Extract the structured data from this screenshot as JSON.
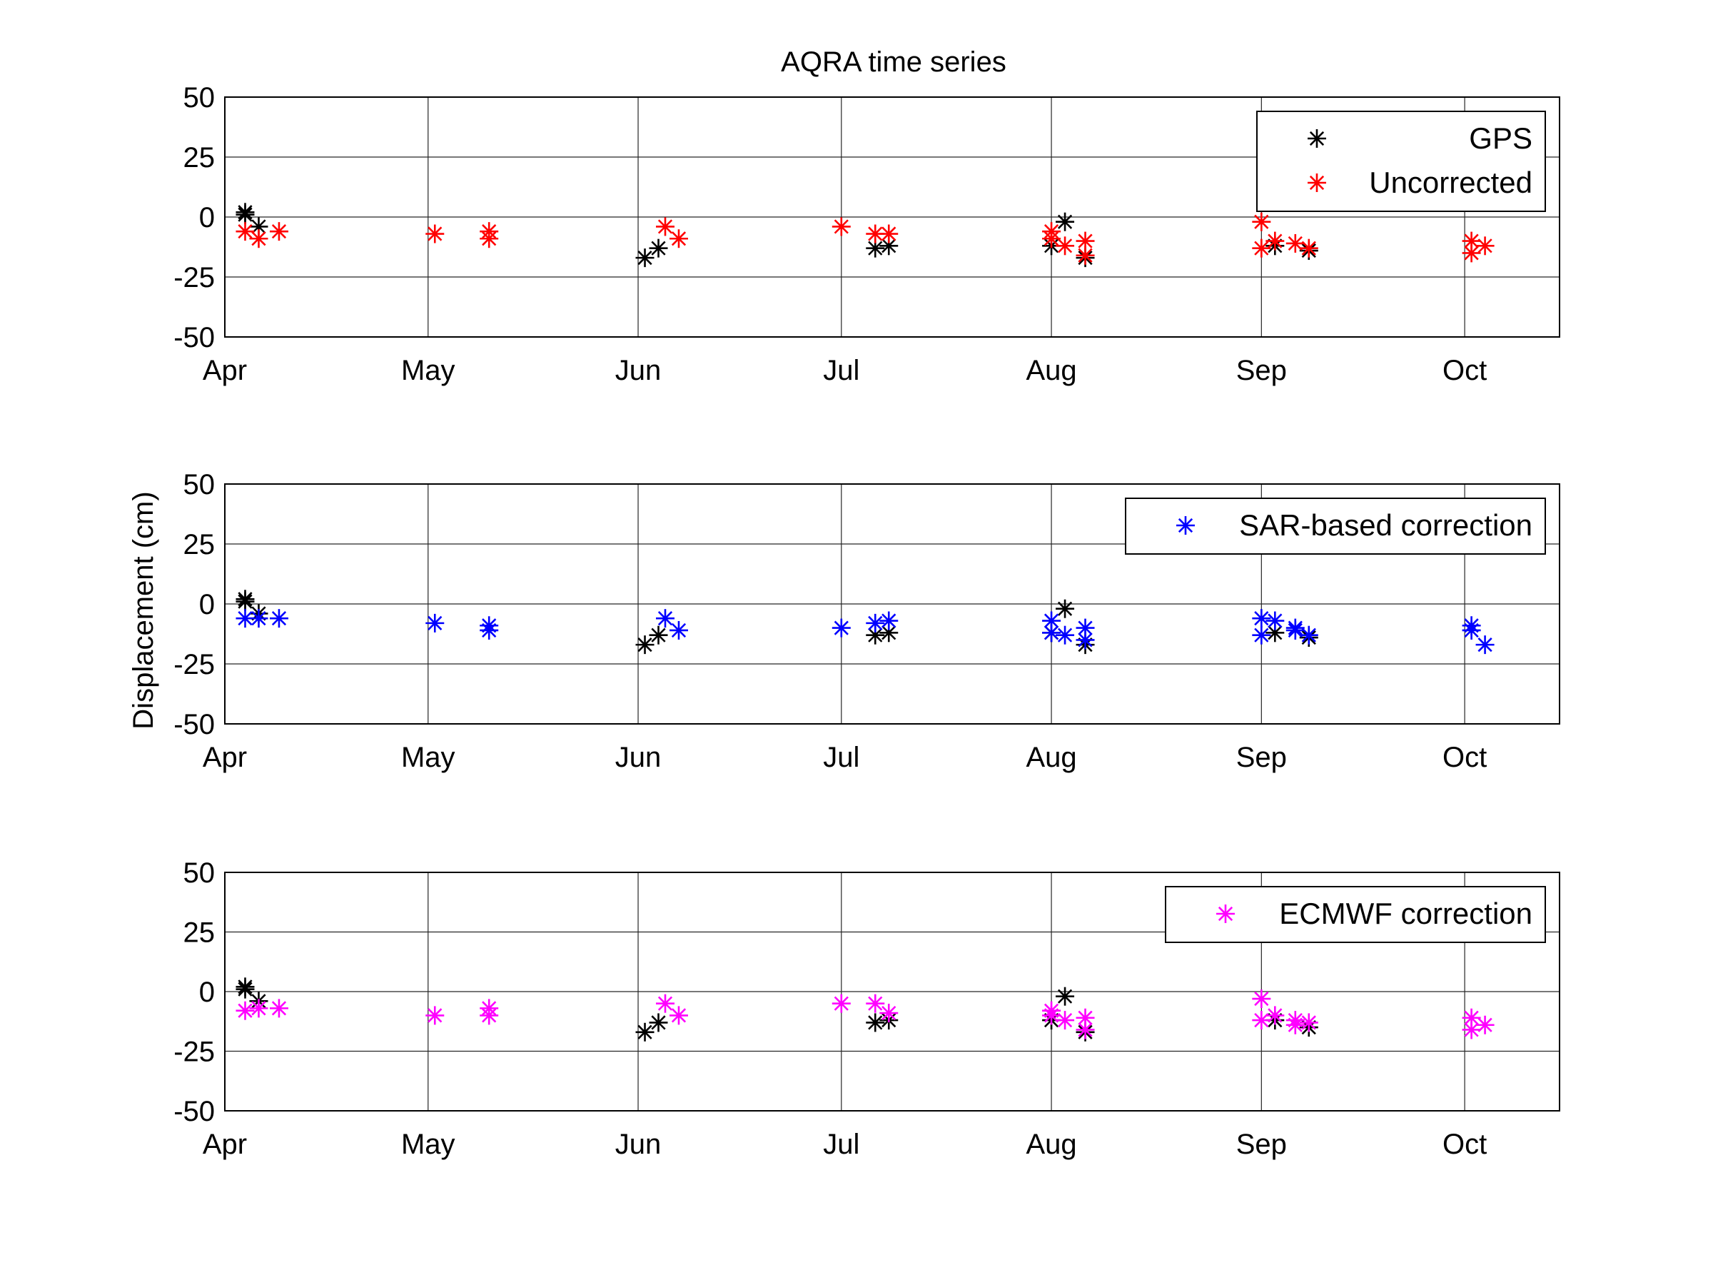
{
  "figure": {
    "title": "AQRA time series",
    "ylabel": "Displacement (cm)"
  },
  "colors": {
    "gps": "#000000",
    "uncorrected": "#ff0000",
    "sar": "#0000ff",
    "ecmwf": "#ff00ff",
    "grid": "#262626",
    "axes": "#000000"
  },
  "chart_data": [
    {
      "type": "scatter",
      "panel": "top",
      "title": "AQRA time series",
      "xlabel": "",
      "ylabel": "",
      "xlim": [
        "Apr 1",
        "Oct 15"
      ],
      "ylim": [
        -50,
        50
      ],
      "yticks": [
        50,
        25,
        0,
        -25,
        -50
      ],
      "yticklabels": [
        "50",
        "25",
        "0",
        "-25",
        "-50"
      ],
      "xticks": [
        "Apr 1",
        "May 1",
        "Jun 1",
        "Jul 1",
        "Aug 1",
        "Sep 1",
        "Oct 1"
      ],
      "xticklabels": [
        "Apr",
        "May",
        "Jun",
        "Jul",
        "Aug",
        "Sep",
        "Oct"
      ],
      "grid": true,
      "legend_position": "top-right",
      "series": [
        {
          "name": "GPS",
          "color": "#000000",
          "marker": "*",
          "points": [
            [
              "Apr 4",
              2
            ],
            [
              "Apr 4",
              1
            ],
            [
              "Apr 6",
              -4
            ],
            [
              "Jun 2",
              -17
            ],
            [
              "Jun 4",
              -13
            ],
            [
              "Jul 6",
              -13
            ],
            [
              "Jul 8",
              -12
            ],
            [
              "Aug 1",
              -12
            ],
            [
              "Aug 3",
              -2
            ],
            [
              "Aug 6",
              -17
            ],
            [
              "Sep 3",
              -12
            ],
            [
              "Sep 8",
              -14
            ]
          ]
        },
        {
          "name": "Uncorrected",
          "color": "#ff0000",
          "marker": "*",
          "points": [
            [
              "Apr 4",
              -6
            ],
            [
              "Apr 6",
              -9
            ],
            [
              "Apr 9",
              -6
            ],
            [
              "May 2",
              -7
            ],
            [
              "May 10",
              -6
            ],
            [
              "May 10",
              -9
            ],
            [
              "Jun 5",
              -4
            ],
            [
              "Jun 7",
              -9
            ],
            [
              "Jul 1",
              -4
            ],
            [
              "Jul 6",
              -7
            ],
            [
              "Jul 8",
              -7
            ],
            [
              "Aug 1",
              -9
            ],
            [
              "Aug 1",
              -6
            ],
            [
              "Aug 3",
              -12
            ],
            [
              "Aug 6",
              -10
            ],
            [
              "Aug 6",
              -16
            ],
            [
              "Sep 1",
              -2
            ],
            [
              "Sep 1",
              -13
            ],
            [
              "Sep 3",
              -10
            ],
            [
              "Sep 6",
              -11
            ],
            [
              "Sep 8",
              -13
            ],
            [
              "Oct 2",
              -10
            ],
            [
              "Oct 2",
              -15
            ],
            [
              "Oct 4",
              -12
            ]
          ]
        }
      ]
    },
    {
      "type": "scatter",
      "panel": "middle",
      "title": "",
      "xlabel": "",
      "ylabel": "Displacement (cm)",
      "xlim": [
        "Apr 1",
        "Oct 15"
      ],
      "ylim": [
        -50,
        50
      ],
      "yticks": [
        50,
        25,
        0,
        -25,
        -50
      ],
      "yticklabels": [
        "50",
        "25",
        "0",
        "-25",
        "-50"
      ],
      "xticks": [
        "Apr 1",
        "May 1",
        "Jun 1",
        "Jul 1",
        "Aug 1",
        "Sep 1",
        "Oct 1"
      ],
      "xticklabels": [
        "Apr",
        "May",
        "Jun",
        "Jul",
        "Aug",
        "Sep",
        "Oct"
      ],
      "grid": true,
      "legend_position": "top-right",
      "series": [
        {
          "name": "",
          "color": "#000000",
          "marker": "*",
          "points": [
            [
              "Apr 4",
              2
            ],
            [
              "Apr 4",
              1
            ],
            [
              "Apr 6",
              -4
            ],
            [
              "Jun 2",
              -17
            ],
            [
              "Jun 4",
              -13
            ],
            [
              "Jul 6",
              -13
            ],
            [
              "Jul 8",
              -12
            ],
            [
              "Aug 1",
              -12
            ],
            [
              "Aug 3",
              -2
            ],
            [
              "Aug 6",
              -17
            ],
            [
              "Sep 3",
              -12
            ],
            [
              "Sep 8",
              -14
            ]
          ]
        },
        {
          "name": "SAR-based correction",
          "color": "#0000ff",
          "marker": "*",
          "points": [
            [
              "Apr 4",
              -6
            ],
            [
              "Apr 6",
              -6
            ],
            [
              "Apr 9",
              -6
            ],
            [
              "May 2",
              -8
            ],
            [
              "May 10",
              -9
            ],
            [
              "May 10",
              -11
            ],
            [
              "Jun 5",
              -6
            ],
            [
              "Jun 7",
              -11
            ],
            [
              "Jul 1",
              -10
            ],
            [
              "Jul 6",
              -8
            ],
            [
              "Jul 8",
              -7
            ],
            [
              "Aug 1",
              -7
            ],
            [
              "Aug 1",
              -12
            ],
            [
              "Aug 3",
              -13
            ],
            [
              "Aug 6",
              -10
            ],
            [
              "Aug 6",
              -15
            ],
            [
              "Sep 1",
              -6
            ],
            [
              "Sep 1",
              -13
            ],
            [
              "Sep 3",
              -7
            ],
            [
              "Sep 6",
              -10
            ],
            [
              "Sep 6",
              -11
            ],
            [
              "Sep 8",
              -13
            ],
            [
              "Oct 2",
              -9
            ],
            [
              "Oct 2",
              -11
            ],
            [
              "Oct 4",
              -17
            ]
          ]
        }
      ]
    },
    {
      "type": "scatter",
      "panel": "bottom",
      "title": "",
      "xlabel": "",
      "ylabel": "",
      "xlim": [
        "Apr 1",
        "Oct 15"
      ],
      "ylim": [
        -50,
        50
      ],
      "yticks": [
        50,
        25,
        0,
        -25,
        -50
      ],
      "yticklabels": [
        "50",
        "25",
        "0",
        "-25",
        "-50"
      ],
      "xticks": [
        "Apr 1",
        "May 1",
        "Jun 1",
        "Jul 1",
        "Aug 1",
        "Sep 1",
        "Oct 1"
      ],
      "xticklabels": [
        "Apr",
        "May",
        "Jun",
        "Jul",
        "Aug",
        "Sep",
        "Oct"
      ],
      "grid": true,
      "legend_position": "top-right",
      "series": [
        {
          "name": "",
          "color": "#000000",
          "marker": "*",
          "points": [
            [
              "Apr 4",
              2
            ],
            [
              "Apr 4",
              1
            ],
            [
              "Apr 6",
              -4
            ],
            [
              "Jun 2",
              -17
            ],
            [
              "Jun 4",
              -13
            ],
            [
              "Jul 6",
              -13
            ],
            [
              "Jul 8",
              -12
            ],
            [
              "Aug 1",
              -12
            ],
            [
              "Aug 3",
              -2
            ],
            [
              "Aug 6",
              -17
            ],
            [
              "Sep 3",
              -12
            ],
            [
              "Sep 8",
              -15
            ]
          ]
        },
        {
          "name": "ECMWF correction",
          "color": "#ff00ff",
          "marker": "*",
          "points": [
            [
              "Apr 4",
              -8
            ],
            [
              "Apr 6",
              -7
            ],
            [
              "Apr 9",
              -7
            ],
            [
              "May 2",
              -10
            ],
            [
              "May 10",
              -7
            ],
            [
              "May 10",
              -10
            ],
            [
              "Jun 5",
              -5
            ],
            [
              "Jun 7",
              -10
            ],
            [
              "Jul 1",
              -5
            ],
            [
              "Jul 6",
              -5
            ],
            [
              "Jul 8",
              -9
            ],
            [
              "Aug 1",
              -8
            ],
            [
              "Aug 1",
              -10
            ],
            [
              "Aug 3",
              -12
            ],
            [
              "Aug 6",
              -11
            ],
            [
              "Aug 6",
              -16
            ],
            [
              "Sep 1",
              -3
            ],
            [
              "Sep 1",
              -12
            ],
            [
              "Sep 3",
              -10
            ],
            [
              "Sep 6",
              -12
            ],
            [
              "Sep 6",
              -14
            ],
            [
              "Sep 8",
              -13
            ],
            [
              "Oct 2",
              -11
            ],
            [
              "Oct 2",
              -16
            ],
            [
              "Oct 4",
              -14
            ]
          ]
        }
      ]
    }
  ]
}
